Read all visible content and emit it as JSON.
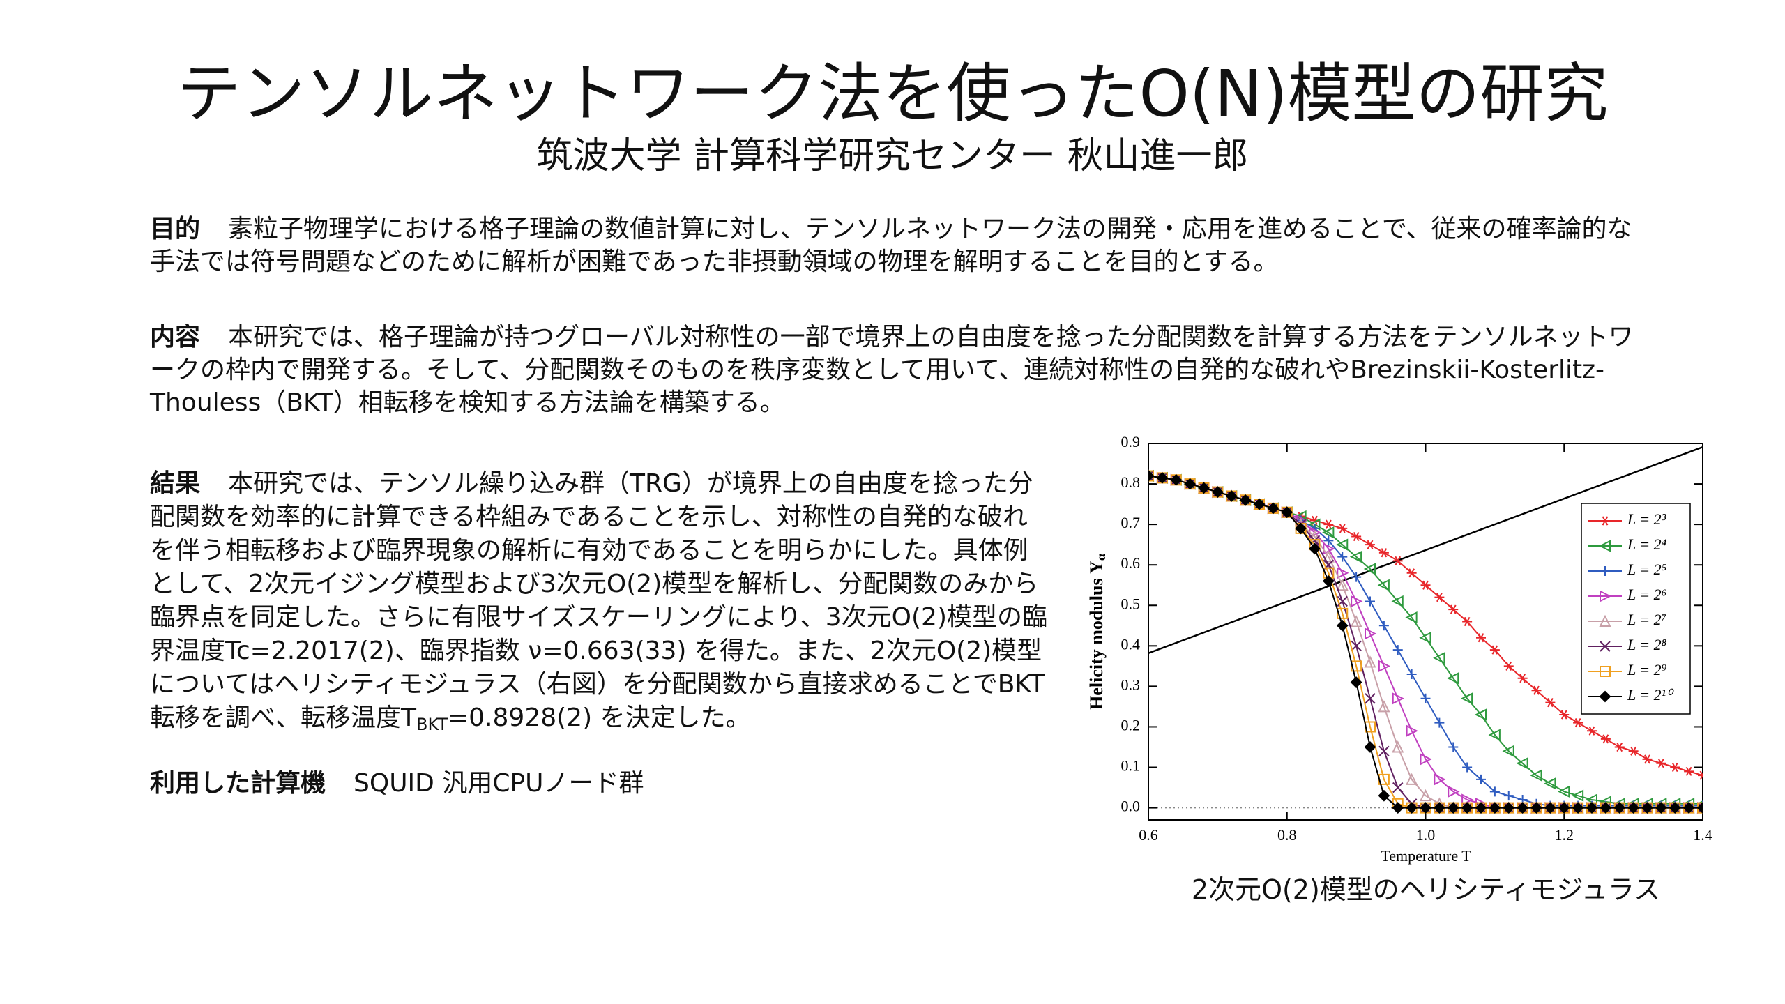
{
  "header": {
    "title": "テンソルネットワーク法を使ったO(N)模型の研究",
    "subtitle": "筑波大学 計算科学研究センター 秋山進一郎"
  },
  "sections": [
    {
      "label": "目的",
      "text": "素粒子物理学における格子理論の数値計算に対し、テンソルネットワーク法の開発・応用を進めることで、従来の確率論的な手法では符号問題などのために解析が困難であった非摂動領域の物理を解明することを目的とする。"
    },
    {
      "label": "内容",
      "text": "本研究では、格子理論が持つグローバル対称性の一部で境界上の自由度を捻った分配関数を計算する方法をテンソルネットワークの枠内で開発する。そして、分配関数そのものを秩序変数として用いて、連続対称性の自発的な破れやBrezinskii-Kosterlitz-Thouless（BKT）相転移を検知する方法論を構築する。"
    },
    {
      "label": "結果",
      "text": "本研究では、テンソル繰り込み群（TRG）が境界上の自由度を捻った分配関数を効率的に計算できる枠組みであることを示し、対称性の自発的な破れを伴う相転移および臨界現象の解析に有効であることを明らかにした。具体例として、2次元イジング模型および3次元O(2)模型を解析し、分配関数のみから臨界点を同定した。さらに有限サイズスケーリングにより、3次元O(2)模型の臨界温度Tc=2.2017(2)、臨界指数 ν=0.663(33) を得た。また、2次元O(2)模型についてはヘリシティモジュラス（右図）を分配関数から直接求めることでBKT転移を調べ、転移温度T",
      "sub": "BKT",
      "text_after": "=0.8928(2) を決定した。"
    },
    {
      "label": "利用した計算機",
      "text": "SQUID 汎用CPUノード群"
    }
  ],
  "figure_caption": "2次元O(2)模型のヘリシティモジュラス",
  "chart_data": {
    "type": "line",
    "xlabel": "Temperature T",
    "ylabel": "Helicity modulus Υ",
    "ylabel_sub": "α",
    "xlim": [
      0.6,
      1.4
    ],
    "ylim": [
      -0.03,
      0.9
    ],
    "xticks": [
      0.6,
      0.8,
      {
        "value": 1,
        "label": "1.0"
      },
      1.2,
      1.4
    ],
    "yticks": [
      {
        "value": 0,
        "label": "0.0"
      },
      0.1,
      0.2,
      0.3,
      0.4,
      0.5,
      0.6,
      0.7,
      0.8,
      0.9
    ],
    "legend": "right",
    "reference_line": {
      "x": [
        0.6,
        1.4
      ],
      "values": [
        0.382,
        0.891
      ],
      "color": "#000000"
    },
    "x": [
      0.6,
      0.62,
      0.64,
      0.66,
      0.68,
      0.7,
      0.72,
      0.74,
      0.76,
      0.78,
      0.8,
      0.82,
      0.84,
      0.86,
      0.88,
      0.9,
      0.92,
      0.94,
      0.96,
      0.98,
      1.0,
      1.02,
      1.04,
      1.06,
      1.08,
      1.1,
      1.12,
      1.14,
      1.16,
      1.18,
      1.2,
      1.22,
      1.24,
      1.26,
      1.28,
      1.3,
      1.32,
      1.34,
      1.36,
      1.38,
      1.4
    ],
    "series": [
      {
        "name": "L = 2³",
        "color": "#e8262a",
        "marker": "asterisk",
        "values": [
          0.82,
          0.815,
          0.81,
          0.8,
          0.79,
          0.78,
          0.77,
          0.76,
          0.75,
          0.74,
          0.73,
          0.72,
          0.71,
          0.7,
          0.69,
          0.67,
          0.65,
          0.63,
          0.61,
          0.58,
          0.55,
          0.52,
          0.49,
          0.46,
          0.42,
          0.39,
          0.35,
          0.32,
          0.29,
          0.26,
          0.23,
          0.21,
          0.19,
          0.17,
          0.15,
          0.14,
          0.12,
          0.11,
          0.1,
          0.09,
          0.08
        ]
      },
      {
        "name": "L = 2⁴",
        "color": "#2e9a3e",
        "marker": "triangle-left",
        "values": [
          0.82,
          0.815,
          0.81,
          0.8,
          0.79,
          0.78,
          0.77,
          0.76,
          0.75,
          0.74,
          0.73,
          0.72,
          0.7,
          0.68,
          0.65,
          0.62,
          0.59,
          0.55,
          0.51,
          0.47,
          0.42,
          0.37,
          0.32,
          0.27,
          0.23,
          0.18,
          0.14,
          0.11,
          0.08,
          0.06,
          0.04,
          0.03,
          0.02,
          0.015,
          0.01,
          0.01,
          0.01,
          0.01,
          0.01,
          0.01,
          0.01
        ]
      },
      {
        "name": "L = 2⁵",
        "color": "#2f5cc0",
        "marker": "plus",
        "values": [
          0.82,
          0.815,
          0.81,
          0.8,
          0.79,
          0.78,
          0.77,
          0.76,
          0.75,
          0.74,
          0.73,
          0.71,
          0.69,
          0.66,
          0.62,
          0.57,
          0.51,
          0.45,
          0.39,
          0.33,
          0.27,
          0.21,
          0.15,
          0.1,
          0.07,
          0.04,
          0.03,
          0.02,
          0.01,
          0.005,
          0.005,
          0.005,
          0.005,
          0.005,
          0.005,
          0.005,
          0.005,
          0.005,
          0.005,
          0.005,
          0.005
        ]
      },
      {
        "name": "L = 2⁶",
        "color": "#c040c0",
        "marker": "triangle-right",
        "values": [
          0.82,
          0.815,
          0.81,
          0.8,
          0.79,
          0.78,
          0.77,
          0.76,
          0.75,
          0.74,
          0.73,
          0.71,
          0.68,
          0.64,
          0.58,
          0.51,
          0.43,
          0.35,
          0.27,
          0.19,
          0.12,
          0.07,
          0.04,
          0.02,
          0.01,
          0,
          0,
          0,
          0,
          0,
          0,
          0,
          0,
          0,
          0,
          0,
          0,
          0,
          0,
          0,
          0
        ]
      },
      {
        "name": "L = 2⁷",
        "color": "#c8a0a8",
        "marker": "triangle-up",
        "values": [
          0.82,
          0.815,
          0.81,
          0.8,
          0.79,
          0.78,
          0.77,
          0.76,
          0.75,
          0.74,
          0.73,
          0.7,
          0.67,
          0.62,
          0.55,
          0.46,
          0.36,
          0.25,
          0.15,
          0.07,
          0.03,
          0.01,
          0,
          0,
          0,
          0,
          0,
          0,
          0,
          0,
          0,
          0,
          0,
          0,
          0,
          0,
          0,
          0,
          0,
          0,
          0
        ]
      },
      {
        "name": "L = 2⁸",
        "color": "#602060",
        "marker": "cross",
        "values": [
          0.82,
          0.815,
          0.81,
          0.8,
          0.79,
          0.78,
          0.77,
          0.76,
          0.75,
          0.74,
          0.73,
          0.7,
          0.66,
          0.6,
          0.51,
          0.4,
          0.27,
          0.14,
          0.05,
          0.01,
          0,
          0,
          0,
          0,
          0,
          0,
          0,
          0,
          0,
          0,
          0,
          0,
          0,
          0,
          0,
          0,
          0,
          0,
          0,
          0,
          0
        ]
      },
      {
        "name": "L = 2⁹",
        "color": "#f0a020",
        "marker": "square",
        "values": [
          0.82,
          0.815,
          0.81,
          0.8,
          0.79,
          0.78,
          0.77,
          0.76,
          0.75,
          0.74,
          0.73,
          0.69,
          0.65,
          0.58,
          0.48,
          0.35,
          0.2,
          0.07,
          0.01,
          0,
          0,
          0,
          0,
          0,
          0,
          0,
          0,
          0,
          0,
          0,
          0,
          0,
          0,
          0,
          0,
          0,
          0,
          0,
          0,
          0,
          0
        ]
      },
      {
        "name": "L = 2¹⁰",
        "color": "#000000",
        "marker": "diamond",
        "values": [
          0.82,
          0.815,
          0.81,
          0.8,
          0.79,
          0.78,
          0.77,
          0.76,
          0.75,
          0.74,
          0.73,
          0.69,
          0.64,
          0.56,
          0.45,
          0.31,
          0.15,
          0.03,
          0,
          0,
          0,
          0,
          0,
          0,
          0,
          0,
          0,
          0,
          0,
          0,
          0,
          0,
          0,
          0,
          0,
          0,
          0,
          0,
          0,
          0,
          0
        ]
      }
    ]
  }
}
